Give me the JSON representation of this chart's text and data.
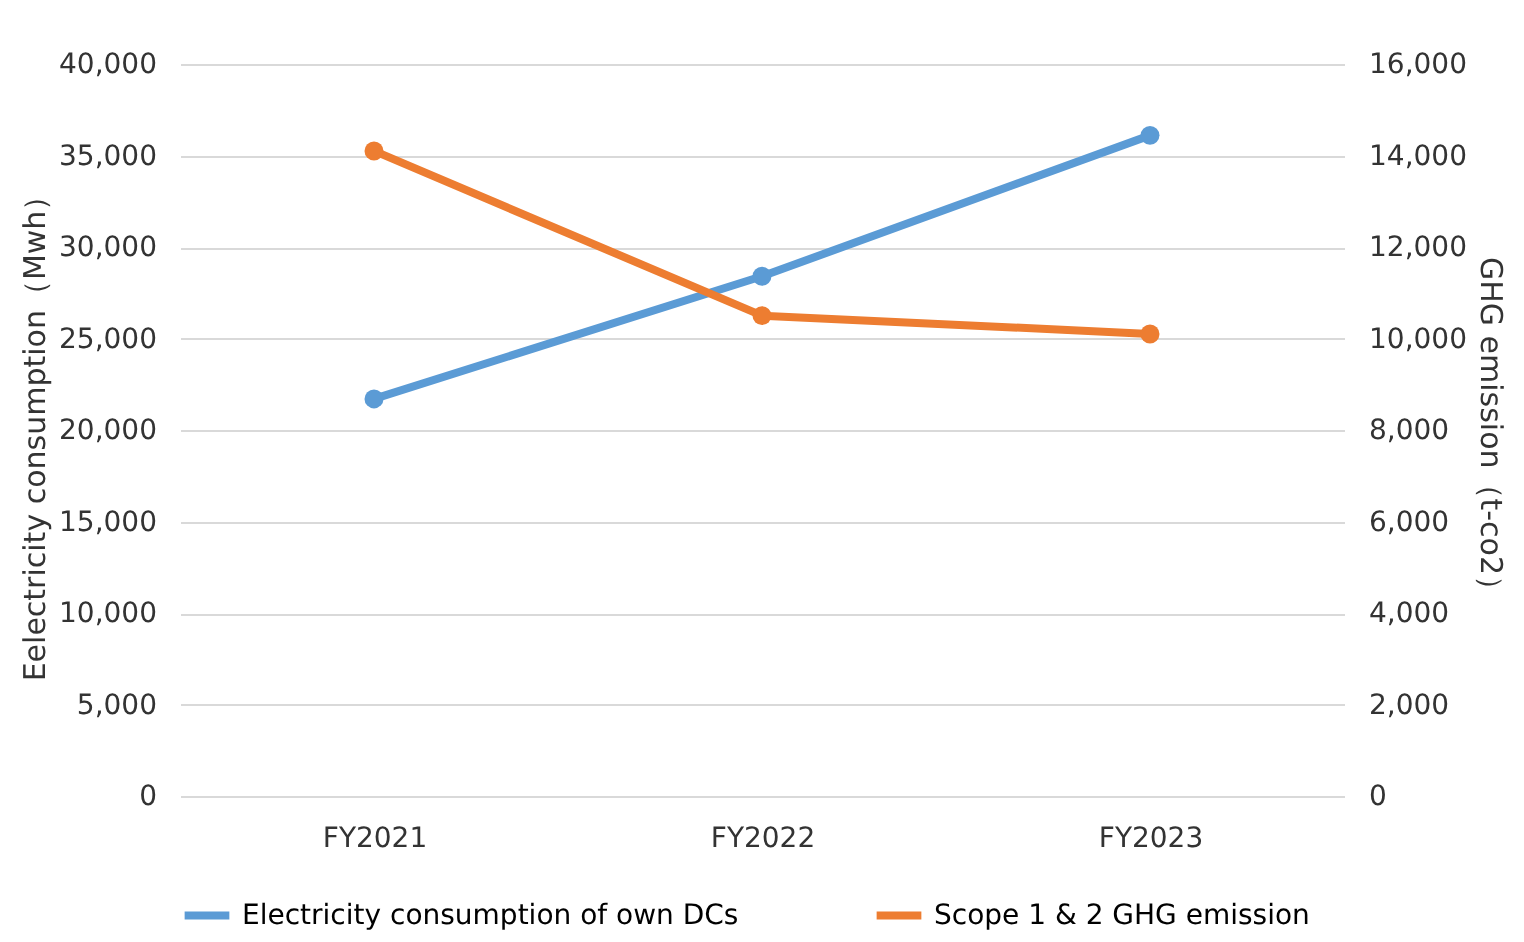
{
  "chart_data": {
    "type": "line",
    "xlabel": null,
    "ylabel": "Eelectricity consumption（Mwh）",
    "y2label": "GHG emission（t-co2）",
    "categories": [
      "FY2021",
      "FY2022",
      "FY2023"
    ],
    "series": [
      {
        "name": "Electricity consumption of own DCs",
        "color": "#5b9bd5",
        "values": [
          21700,
          28400,
          36100
        ]
      },
      {
        "name": "Scope 1 & 2 GHG emission",
        "color": "#ed7d31",
        "values": [
          14100,
          10500,
          10100
        ],
        "axis": "y2"
      }
    ],
    "ylim": [
      0,
      40000
    ],
    "yticks": [
      0,
      {
        "value": 5000,
        "label": "5,000"
      },
      {
        "value": 10000,
        "label": "10,000"
      },
      {
        "value": 15000,
        "label": "15,000"
      },
      {
        "value": 20000,
        "label": "20,000"
      },
      {
        "value": 25000,
        "label": "25,000"
      },
      {
        "value": 30000,
        "label": "30,000"
      },
      {
        "value": 35000,
        "label": "35,000"
      },
      {
        "value": 40000,
        "label": "40,000"
      }
    ],
    "y2lim": [
      0,
      16000
    ],
    "y2ticks": [
      0,
      {
        "value": 2000,
        "label": "2,000"
      },
      {
        "value": 4000,
        "label": "4,000"
      },
      {
        "value": 6000,
        "label": "6,000"
      },
      {
        "value": 8000,
        "label": "8,000"
      },
      {
        "value": 10000,
        "label": "10,000"
      },
      {
        "value": 12000,
        "label": "12,000"
      },
      {
        "value": 14000,
        "label": "14,000"
      },
      {
        "value": 16000,
        "label": "16,000"
      }
    ],
    "grid": "y",
    "legend": "bottom",
    "marker": "circle",
    "line_style": "solid"
  }
}
